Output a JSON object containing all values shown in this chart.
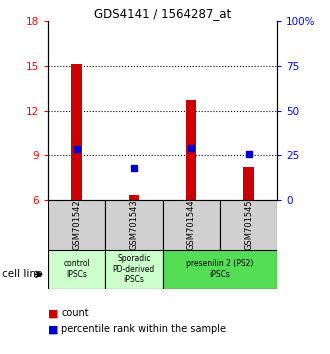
{
  "title": "GDS4141 / 1564287_at",
  "samples": [
    "GSM701542",
    "GSM701543",
    "GSM701544",
    "GSM701545"
  ],
  "ylim_left": [
    6,
    18
  ],
  "ylim_right": [
    0,
    100
  ],
  "yticks_left": [
    6,
    9,
    12,
    15,
    18
  ],
  "yticks_right": [
    0,
    25,
    50,
    75,
    100
  ],
  "ytick_labels_right": [
    "0",
    "25",
    "50",
    "75",
    "100%"
  ],
  "bar_bottom": 6,
  "bar_tops": [
    15.1,
    6.35,
    12.7,
    8.2
  ],
  "percentile_values": [
    9.4,
    8.15,
    9.5,
    9.1
  ],
  "bar_color": "#cc0000",
  "percentile_color": "#0000cc",
  "sample_bg_color": "#d0d0d0",
  "bar_width": 0.18,
  "marker_size": 5,
  "group_info": [
    [
      0,
      1,
      "control\nIPSCs",
      "#ccffcc"
    ],
    [
      1,
      2,
      "Sporadic\nPD-derived\niPSCs",
      "#ccffcc"
    ],
    [
      2,
      4,
      "presenilin 2 (PS2)\niPSCs",
      "#55dd55"
    ]
  ]
}
